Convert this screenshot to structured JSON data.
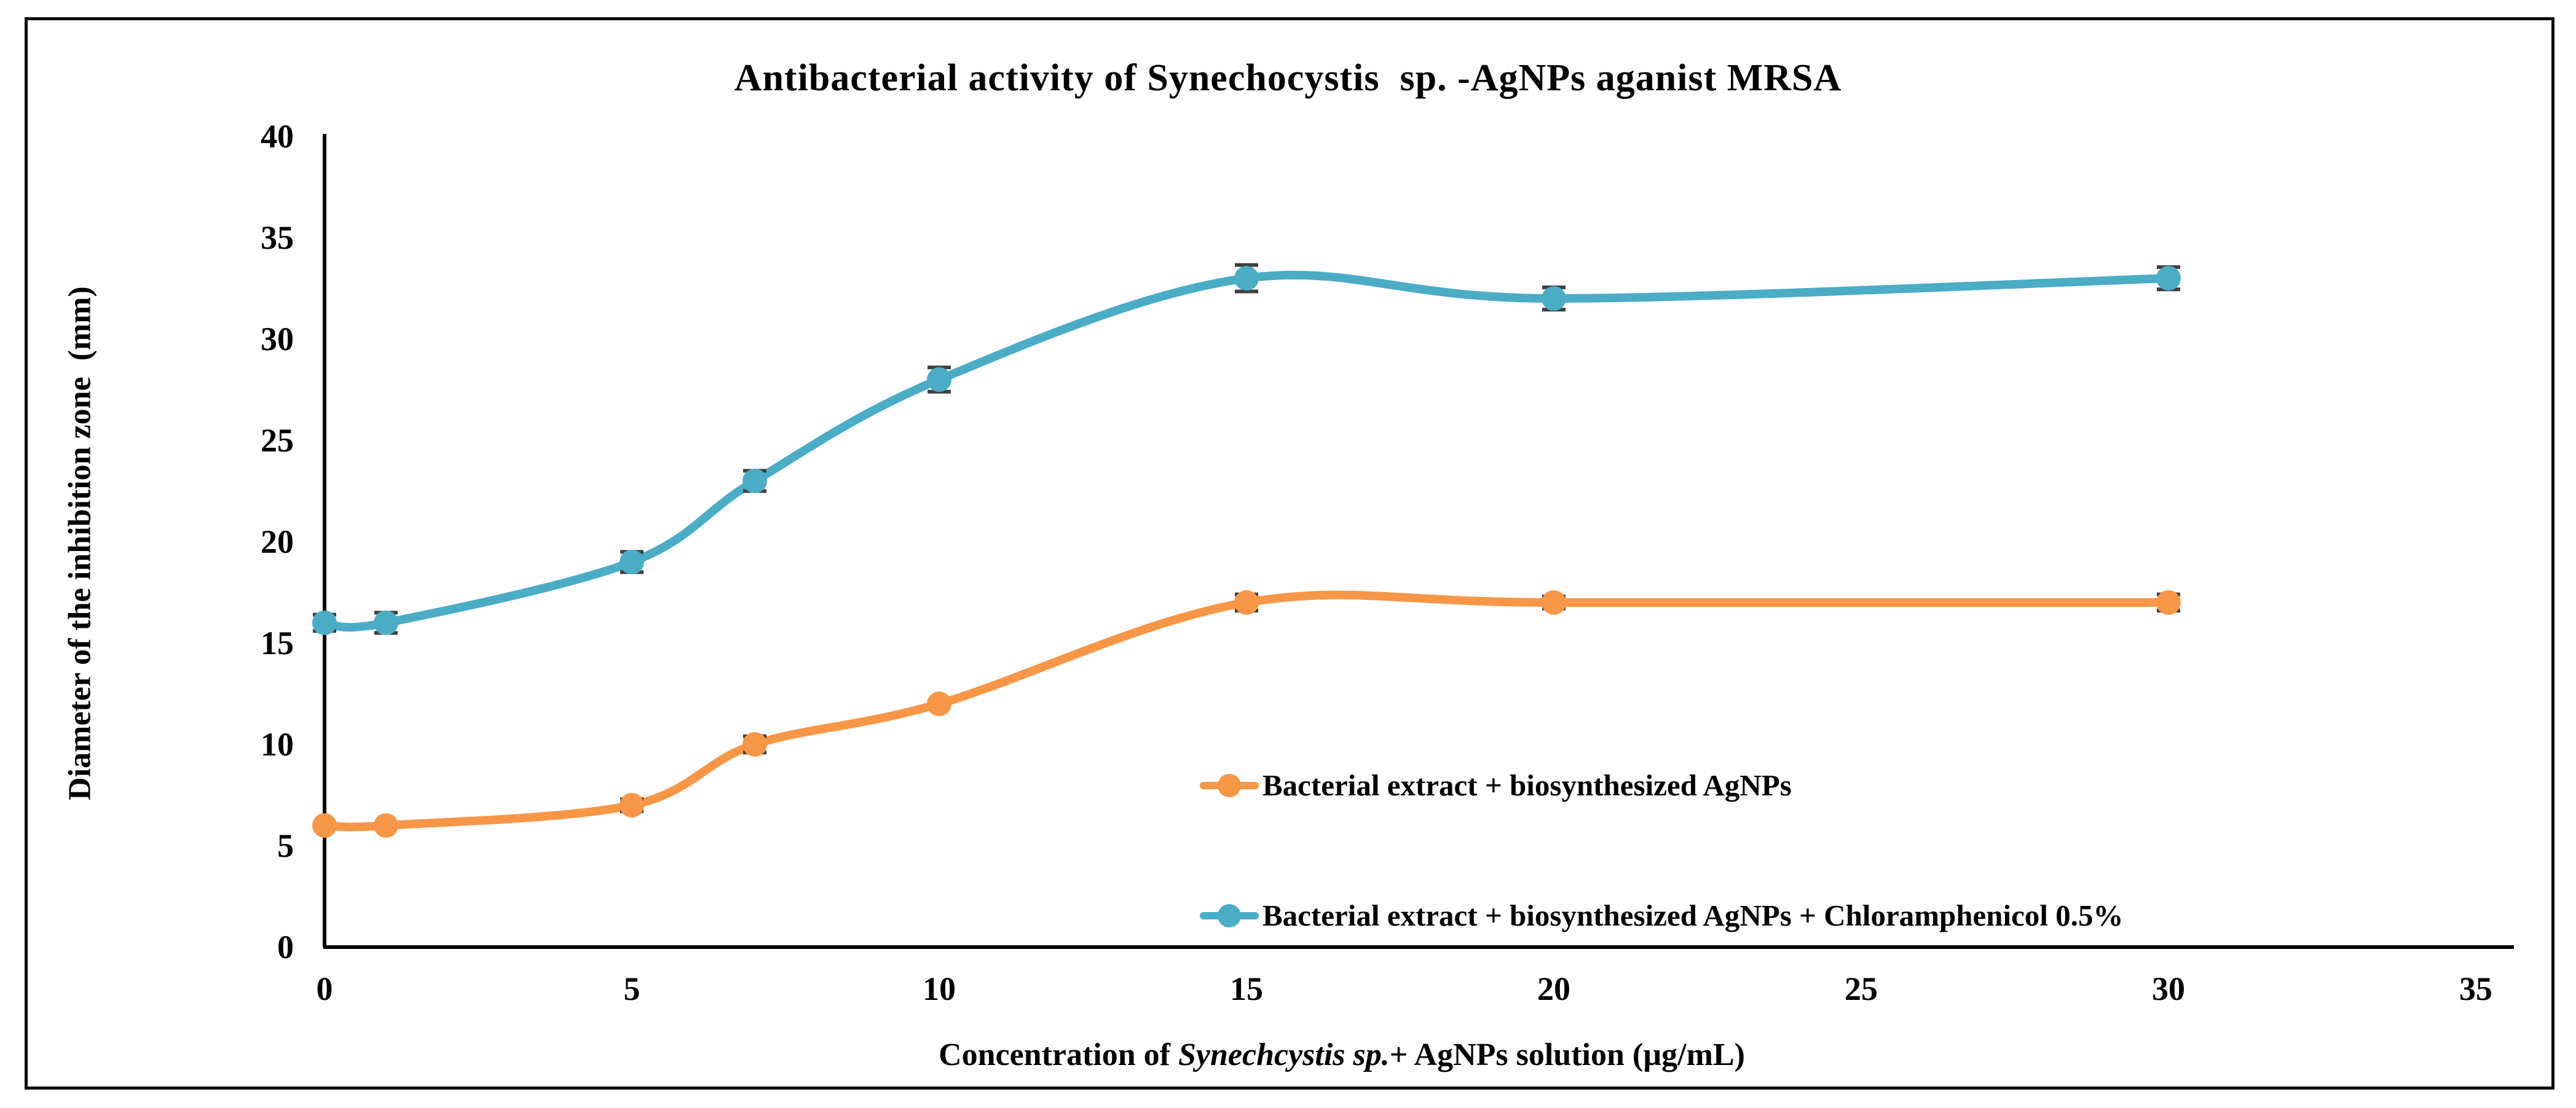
{
  "figure": {
    "background": "#ffffff",
    "border_color": "#0c0c0c"
  },
  "chart_data": {
    "type": "line",
    "title": "Antibacterial activity of Synechocystis  sp. -AgNPs aganist MRSA",
    "ylabel": "Diameter of the inhibition zone  (mm)",
    "xlabel_parts": {
      "prefix": "Concentration of ",
      "italic": "Synechcystis sp.",
      "suffix": "+ AgNPs solution (µg/mL)"
    },
    "x": [
      0,
      1,
      5,
      7,
      10,
      15,
      20,
      30
    ],
    "series": [
      {
        "name": "Bacterial extract + biosynthesized AgNPs",
        "color": "#F79646",
        "values": [
          6,
          6,
          7,
          10,
          12,
          17,
          17,
          17
        ],
        "errors": [
          0,
          0,
          0.3,
          0.4,
          0,
          0.4,
          0.3,
          0.4
        ]
      },
      {
        "name": "Bacterial extract + biosynthesized AgNPs + Chloramphenicol 0.5%",
        "color": "#4BACC6",
        "values": [
          16,
          16,
          19,
          23,
          28,
          33,
          32,
          33
        ],
        "errors": [
          0.4,
          0.5,
          0.5,
          0.5,
          0.6,
          0.65,
          0.55,
          0.55
        ]
      }
    ],
    "x_ticks": [
      0,
      5,
      10,
      15,
      20,
      25,
      30,
      35
    ],
    "y_ticks": [
      0,
      5,
      10,
      15,
      20,
      25,
      30,
      35,
      40
    ],
    "xlim": [
      0,
      35
    ],
    "ylim": [
      0,
      40
    ],
    "grid": false,
    "smooth": true,
    "legend_position": "inside-right-center",
    "axis_color": "#000000",
    "error_bar_color": "#3f3f3f"
  }
}
